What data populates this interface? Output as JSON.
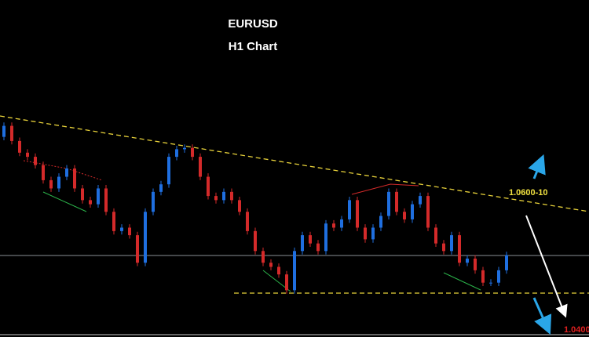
{
  "chart_data": {
    "type": "candlestick",
    "title": "EURUSD",
    "subtitle": "H1 Chart",
    "annotations": [
      "1.0600-10",
      "1.0400"
    ],
    "up_color": "#1f6fe0",
    "down_color": "#d42a2a",
    "ylim": [
      1.0389,
      1.0879
    ],
    "open": [
      1.068,
      1.0696,
      1.0674,
      1.0657,
      1.0651,
      1.0639,
      1.0617,
      1.0605,
      1.0622,
      1.0634,
      1.0605,
      1.0588,
      1.0582,
      1.0605,
      1.0571,
      1.0543,
      1.0548,
      1.0537,
      1.0497,
      1.0571,
      1.06,
      1.0611,
      1.0651,
      1.0662,
      1.0664,
      1.0651,
      1.0622,
      1.0594,
      1.0588,
      1.06,
      1.0588,
      1.0571,
      1.0543,
      1.0514,
      1.0497,
      1.0491,
      1.048,
      1.0457,
      1.0514,
      1.0537,
      1.0525,
      1.0514,
      1.0554,
      1.0548,
      1.056,
      1.0588,
      1.0548,
      1.0531,
      1.0548,
      1.0565,
      1.06,
      1.0571,
      1.056,
      1.0582,
      1.0594,
      1.0548,
      1.0525,
      1.0514,
      1.0537,
      1.0497,
      1.0503,
      1.0486,
      1.0468,
      1.0468,
      1.0486
    ],
    "high": [
      1.0701,
      1.0701,
      1.0679,
      1.0662,
      1.0656,
      1.0644,
      1.0622,
      1.0627,
      1.0639,
      1.0639,
      1.061,
      1.0593,
      1.061,
      1.061,
      1.0576,
      1.0553,
      1.0553,
      1.0542,
      1.0576,
      1.0605,
      1.0616,
      1.0656,
      1.0667,
      1.0669,
      1.0669,
      1.0656,
      1.0627,
      1.0599,
      1.0605,
      1.0605,
      1.0593,
      1.0576,
      1.0548,
      1.0519,
      1.0502,
      1.0496,
      1.0485,
      1.0519,
      1.0542,
      1.0542,
      1.053,
      1.0559,
      1.0559,
      1.0565,
      1.0593,
      1.0593,
      1.0553,
      1.0553,
      1.057,
      1.0605,
      1.0605,
      1.0576,
      1.0587,
      1.0599,
      1.0599,
      1.0553,
      1.053,
      1.0542,
      1.0542,
      1.0508,
      1.0508,
      1.0491,
      1.0473,
      1.0491,
      1.0513
    ],
    "low": [
      1.0675,
      1.0669,
      1.0652,
      1.0646,
      1.0634,
      1.0612,
      1.06,
      1.06,
      1.0617,
      1.06,
      1.0583,
      1.0577,
      1.0577,
      1.0566,
      1.0538,
      1.0538,
      1.0532,
      1.0492,
      1.0492,
      1.0566,
      1.0595,
      1.0606,
      1.0646,
      1.0657,
      1.0646,
      1.0617,
      1.0589,
      1.0583,
      1.0583,
      1.0583,
      1.0566,
      1.0538,
      1.0509,
      1.0492,
      1.0486,
      1.0475,
      1.0452,
      1.0452,
      1.0509,
      1.052,
      1.0509,
      1.0509,
      1.0543,
      1.0543,
      1.0555,
      1.0543,
      1.0526,
      1.0526,
      1.0543,
      1.056,
      1.0566,
      1.0555,
      1.0555,
      1.0577,
      1.0543,
      1.052,
      1.0509,
      1.0509,
      1.0492,
      1.0492,
      1.0481,
      1.0463,
      1.0463,
      1.0463,
      1.0481
    ],
    "close": [
      1.0696,
      1.0674,
      1.0657,
      1.0651,
      1.0639,
      1.0617,
      1.0605,
      1.0622,
      1.0634,
      1.0605,
      1.0588,
      1.0582,
      1.0605,
      1.0571,
      1.0543,
      1.0548,
      1.0537,
      1.0497,
      1.0571,
      1.06,
      1.0611,
      1.0651,
      1.0662,
      1.0664,
      1.0651,
      1.0622,
      1.0594,
      1.0588,
      1.06,
      1.0588,
      1.0571,
      1.0543,
      1.0514,
      1.0497,
      1.0491,
      1.048,
      1.0457,
      1.0514,
      1.0537,
      1.0525,
      1.0514,
      1.0554,
      1.0548,
      1.056,
      1.0588,
      1.0548,
      1.0531,
      1.0548,
      1.0565,
      1.06,
      1.0571,
      1.056,
      1.0582,
      1.0594,
      1.0548,
      1.0525,
      1.0514,
      1.0537,
      1.0497,
      1.0503,
      1.0486,
      1.0468,
      1.0468,
      1.0486,
      1.0508
    ]
  }
}
